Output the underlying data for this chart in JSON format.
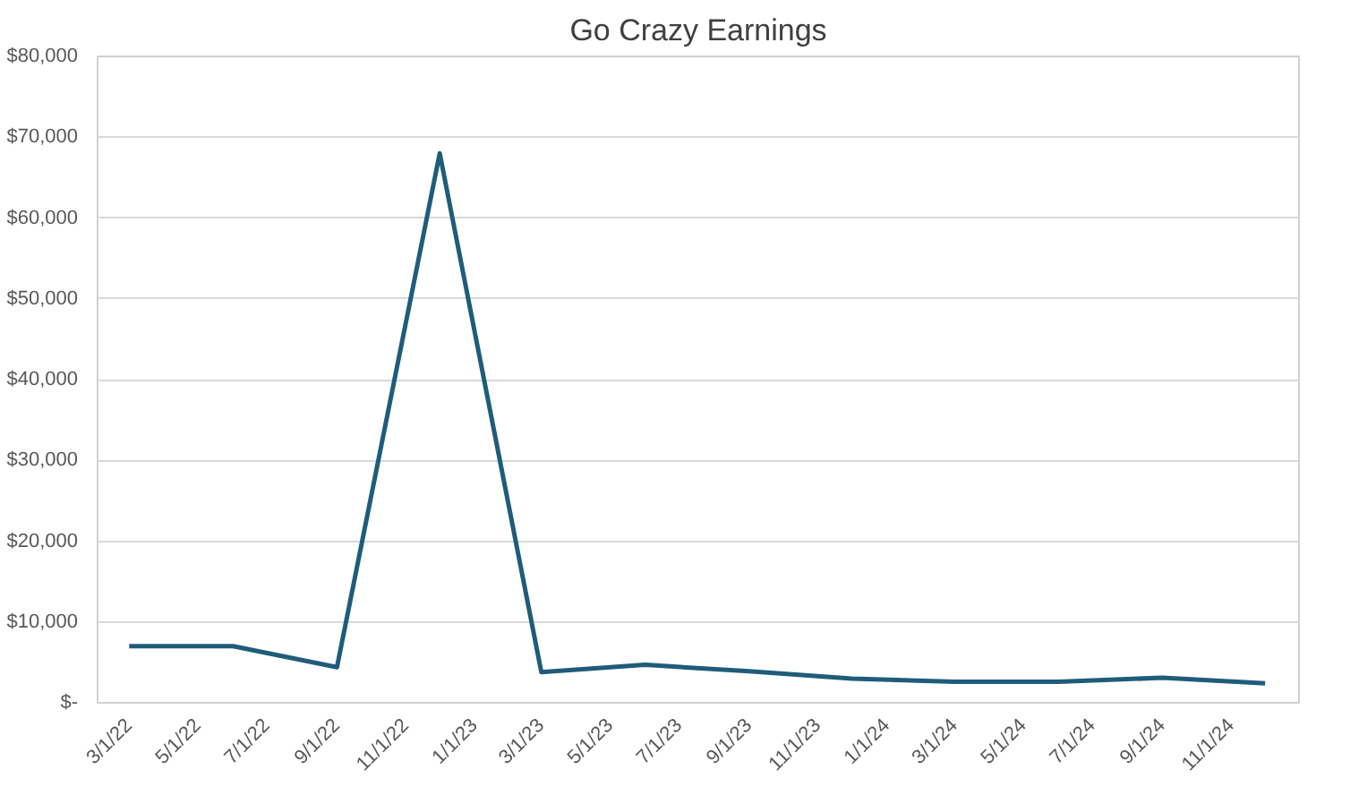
{
  "chart_data": {
    "type": "line",
    "title": "Go Crazy Earnings",
    "x": [
      "2022-03-01",
      "2022-06-01",
      "2022-09-01",
      "2022-12-01",
      "2023-03-01",
      "2023-06-01",
      "2023-09-01",
      "2023-12-01",
      "2024-03-01",
      "2024-06-01",
      "2024-09-01",
      "2024-12-01"
    ],
    "series": [
      {
        "color": "#1f5c7a",
        "values": [
          7000,
          7000,
          4400,
          68000,
          3800,
          4700,
          3900,
          3000,
          2600,
          2600,
          3100,
          2400
        ]
      }
    ],
    "xlim": [
      "2022-02-01",
      "2024-12-31"
    ],
    "xticks": [
      {
        "value": "2022-03-01",
        "label": "3/1/22"
      },
      {
        "value": "2022-05-01",
        "label": "5/1/22"
      },
      {
        "value": "2022-07-01",
        "label": "7/1/22"
      },
      {
        "value": "2022-09-01",
        "label": "9/1/22"
      },
      {
        "value": "2022-11-01",
        "label": "11/1/22"
      },
      {
        "value": "2023-01-01",
        "label": "1/1/23"
      },
      {
        "value": "2023-03-01",
        "label": "3/1/23"
      },
      {
        "value": "2023-05-01",
        "label": "5/1/23"
      },
      {
        "value": "2023-07-01",
        "label": "7/1/23"
      },
      {
        "value": "2023-09-01",
        "label": "9/1/23"
      },
      {
        "value": "2023-11-01",
        "label": "11/1/23"
      },
      {
        "value": "2024-01-01",
        "label": "1/1/24"
      },
      {
        "value": "2024-03-01",
        "label": "3/1/24"
      },
      {
        "value": "2024-05-01",
        "label": "5/1/24"
      },
      {
        "value": "2024-07-01",
        "label": "7/1/24"
      },
      {
        "value": "2024-09-01",
        "label": "9/1/24"
      },
      {
        "value": "2024-11-01",
        "label": "11/1/24"
      }
    ],
    "ylim": [
      0,
      80000
    ],
    "yticks": [
      {
        "value": 0,
        "label": "$-"
      },
      {
        "value": 10000,
        "label": "$10,000"
      },
      {
        "value": 20000,
        "label": "$20,000"
      },
      {
        "value": 30000,
        "label": "$30,000"
      },
      {
        "value": 40000,
        "label": "$40,000"
      },
      {
        "value": 50000,
        "label": "$50,000"
      },
      {
        "value": 60000,
        "label": "$60,000"
      },
      {
        "value": 70000,
        "label": "$70,000"
      },
      {
        "value": 80000,
        "label": "$80,000"
      }
    ],
    "grid": "y",
    "marker": "none",
    "line_style": "solid"
  }
}
